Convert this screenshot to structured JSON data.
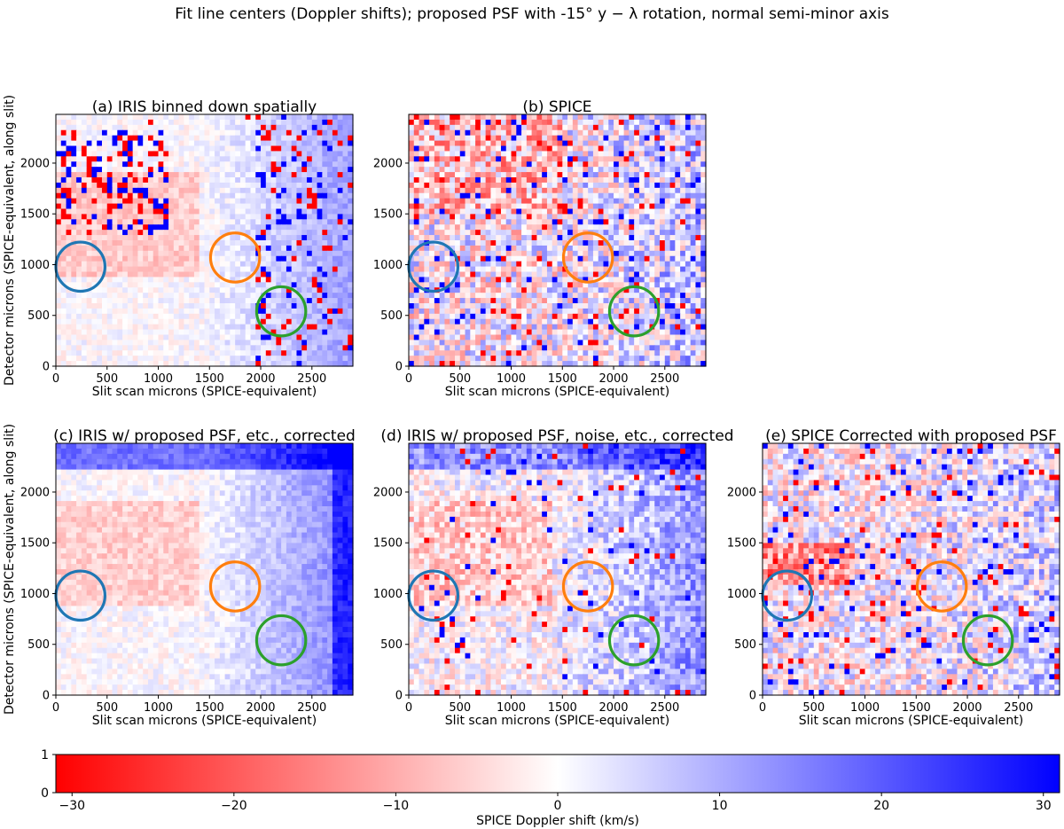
{
  "figure_title": "Fit line centers (Doppler shifts); proposed PSF with -15° y − λ rotation, normal semi-minor axis",
  "chart_data": {
    "type": "heatmap",
    "x_range": [
      0,
      2900
    ],
    "y_range": [
      0,
      2480
    ],
    "xticks": [
      "0",
      "500",
      "1000",
      "1500",
      "2000",
      "2500"
    ],
    "yticks": [
      "0",
      "500",
      "1000",
      "1500",
      "2000"
    ],
    "xlabel": "Slit scan microns (SPICE-equivalent)",
    "ylabel": "Detector microns (SPICE-equivalent, along slit)",
    "panels": [
      {
        "title": "(a) IRIS binned down spatially",
        "style": "a"
      },
      {
        "title": "(b) SPICE",
        "style": "b"
      },
      {
        "title": "(c) IRIS w/ proposed PSF, etc., corrected",
        "style": "c"
      },
      {
        "title": "(d) IRIS w/ proposed PSF, noise, etc., corrected",
        "style": "d"
      },
      {
        "title": "(e) SPICE Corrected with proposed PSF",
        "style": "e"
      }
    ],
    "circles": [
      {
        "color": "#1f77b4",
        "x": 240,
        "y": 980,
        "r": 240
      },
      {
        "color": "#ff7f0e",
        "x": 1750,
        "y": 1070,
        "r": 240
      },
      {
        "color": "#2ca02c",
        "x": 2200,
        "y": 540,
        "r": 240
      }
    ],
    "colorbar": {
      "label": "SPICE Doppler shift (km/s)",
      "range": [
        -31,
        31
      ],
      "ticks": [
        "−30",
        "−20",
        "−10",
        "0",
        "10",
        "20",
        "30"
      ],
      "yticks": [
        "0",
        "1"
      ],
      "colormap": "bwr_r"
    }
  }
}
